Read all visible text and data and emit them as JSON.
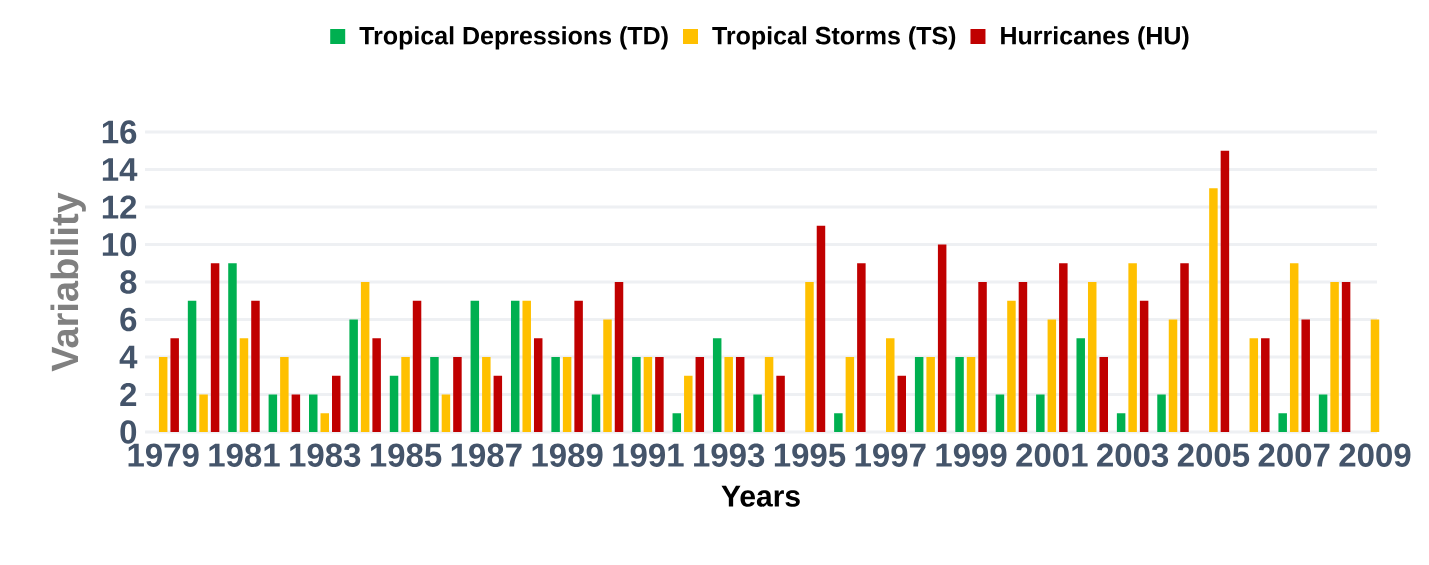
{
  "chart_data": {
    "type": "bar",
    "xlabel": "Years",
    "ylabel": "Variability",
    "categories": [
      "1979",
      null,
      "1981",
      null,
      "1983",
      null,
      "1985",
      null,
      "1987",
      null,
      "1989",
      null,
      "1991",
      null,
      "1993",
      null,
      "1995",
      null,
      "1997",
      null,
      "1999",
      null,
      "2001",
      null,
      "2003",
      null,
      "2005",
      null,
      "2007",
      null,
      "2009"
    ],
    "series": [
      {
        "name": "Tropical Depressions (TD)",
        "color": "#00b050",
        "values": [
          0,
          7,
          9,
          2,
          2,
          6,
          3,
          4,
          7,
          7,
          4,
          2,
          4,
          1,
          5,
          2,
          0,
          1,
          0,
          4,
          4,
          2,
          2,
          5,
          1,
          2,
          0,
          0,
          1,
          2,
          0
        ]
      },
      {
        "name": "Tropical Storms (TS)",
        "color": "#ffc000",
        "values": [
          4,
          2,
          5,
          4,
          1,
          8,
          4,
          2,
          4,
          7,
          4,
          6,
          4,
          3,
          4,
          4,
          8,
          4,
          5,
          4,
          4,
          7,
          6,
          8,
          9,
          6,
          13,
          5,
          9,
          8,
          6
        ]
      },
      {
        "name": "Hurricanes (HU)",
        "color": "#c00000",
        "values": [
          5,
          9,
          7,
          2,
          3,
          5,
          7,
          4,
          3,
          5,
          7,
          8,
          4,
          4,
          4,
          3,
          11,
          9,
          3,
          10,
          8,
          8,
          9,
          4,
          7,
          9,
          15,
          5,
          6,
          8,
          0
        ]
      }
    ],
    "ylim": [
      0,
      16
    ],
    "yticks": [
      0,
      2,
      4,
      6,
      8,
      10,
      12,
      14,
      16
    ],
    "grid": "y",
    "legend": "top"
  }
}
